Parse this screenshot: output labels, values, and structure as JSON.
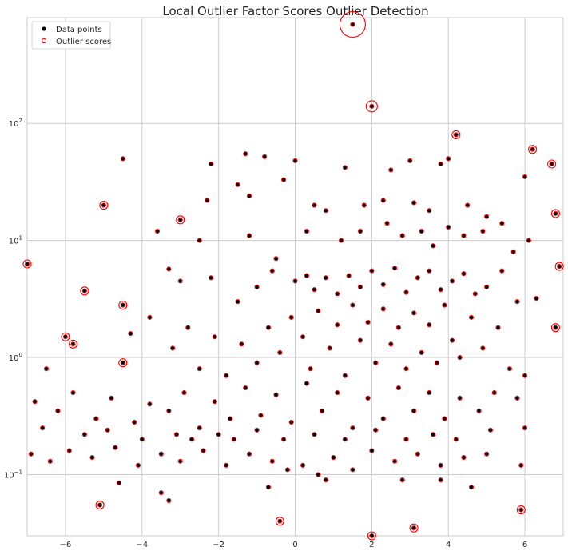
{
  "chart_data": {
    "type": "scatter",
    "title": "Local Outlier Factor Scores Outlier Detection",
    "xlabel": "",
    "ylabel": "",
    "xlim": [
      -7,
      7
    ],
    "ylim": [
      0.03,
      800
    ],
    "yscale": "log",
    "grid": true,
    "legend_position": "top-left",
    "x_ticks": [
      -6,
      -4,
      -2,
      0,
      2,
      4,
      6
    ],
    "y_ticks": [
      0.1,
      1,
      10,
      100
    ],
    "y_tick_labels": [
      "10^-1",
      "10^0",
      "10^1",
      "10^2"
    ],
    "series": [
      {
        "name": "Data points",
        "marker": "filled-circle",
        "color": "#000000",
        "points": [
          [
            1.5,
            700
          ],
          [
            2.0,
            140
          ],
          [
            4.2,
            80
          ],
          [
            6.2,
            60
          ],
          [
            -4.5,
            50
          ],
          [
            -1.3,
            55
          ],
          [
            -0.8,
            52
          ],
          [
            6.7,
            45
          ],
          [
            3.0,
            48
          ],
          [
            3.8,
            45
          ],
          [
            6.0,
            35
          ],
          [
            -2.2,
            45
          ],
          [
            0.0,
            48
          ],
          [
            1.3,
            42
          ],
          [
            2.5,
            40
          ],
          [
            4.0,
            50
          ],
          [
            -5.0,
            20
          ],
          [
            -3.0,
            15
          ],
          [
            -2.3,
            22
          ],
          [
            -1.5,
            30
          ],
          [
            -1.2,
            24
          ],
          [
            -0.3,
            33
          ],
          [
            0.5,
            20
          ],
          [
            0.8,
            18
          ],
          [
            1.8,
            20
          ],
          [
            2.3,
            22
          ],
          [
            3.1,
            21
          ],
          [
            3.5,
            18
          ],
          [
            4.5,
            20
          ],
          [
            5.0,
            16
          ],
          [
            6.8,
            17
          ],
          [
            -6.5,
            0.8
          ],
          [
            -3.6,
            12
          ],
          [
            -2.5,
            10
          ],
          [
            -1.2,
            11
          ],
          [
            -0.5,
            7
          ],
          [
            0.3,
            12
          ],
          [
            1.2,
            10
          ],
          [
            1.7,
            12
          ],
          [
            2.4,
            14
          ],
          [
            2.8,
            11
          ],
          [
            3.3,
            12
          ],
          [
            3.6,
            9
          ],
          [
            4.0,
            13
          ],
          [
            4.4,
            11
          ],
          [
            4.9,
            12
          ],
          [
            5.4,
            14
          ],
          [
            5.7,
            8
          ],
          [
            6.1,
            10
          ],
          [
            -7.0,
            6.3
          ],
          [
            -5.5,
            3.7
          ],
          [
            -4.5,
            2.8
          ],
          [
            -3.3,
            5.7
          ],
          [
            -3.0,
            4.5
          ],
          [
            -2.2,
            4.8
          ],
          [
            -1.5,
            3.0
          ],
          [
            -1.0,
            4.0
          ],
          [
            -0.6,
            5.5
          ],
          [
            0.0,
            4.5
          ],
          [
            0.3,
            5.0
          ],
          [
            0.5,
            3.8
          ],
          [
            0.8,
            4.8
          ],
          [
            1.1,
            3.5
          ],
          [
            1.4,
            5.0
          ],
          [
            1.7,
            4.0
          ],
          [
            2.0,
            5.5
          ],
          [
            2.3,
            4.2
          ],
          [
            2.6,
            5.8
          ],
          [
            2.9,
            3.6
          ],
          [
            3.2,
            4.8
          ],
          [
            3.5,
            5.5
          ],
          [
            3.8,
            3.8
          ],
          [
            4.1,
            4.5
          ],
          [
            4.4,
            5.2
          ],
          [
            4.7,
            3.5
          ],
          [
            5.0,
            4.0
          ],
          [
            5.4,
            5.5
          ],
          [
            5.8,
            3.0
          ],
          [
            6.3,
            3.2
          ],
          [
            6.9,
            6.0
          ],
          [
            -6.0,
            1.5
          ],
          [
            -5.8,
            1.3
          ],
          [
            -4.5,
            0.9
          ],
          [
            -4.3,
            1.6
          ],
          [
            -3.8,
            2.2
          ],
          [
            -3.2,
            1.2
          ],
          [
            -2.8,
            1.8
          ],
          [
            -2.5,
            0.8
          ],
          [
            -2.1,
            1.5
          ],
          [
            -1.8,
            0.7
          ],
          [
            -1.4,
            1.3
          ],
          [
            -1.0,
            0.9
          ],
          [
            -0.7,
            1.8
          ],
          [
            -0.4,
            1.1
          ],
          [
            -0.1,
            2.2
          ],
          [
            0.2,
            1.5
          ],
          [
            0.4,
            0.8
          ],
          [
            0.6,
            2.5
          ],
          [
            0.9,
            1.2
          ],
          [
            1.1,
            1.9
          ],
          [
            1.3,
            0.7
          ],
          [
            1.5,
            2.8
          ],
          [
            1.7,
            1.4
          ],
          [
            1.9,
            2.0
          ],
          [
            2.1,
            0.9
          ],
          [
            2.3,
            2.6
          ],
          [
            2.5,
            1.3
          ],
          [
            2.7,
            1.8
          ],
          [
            2.9,
            0.8
          ],
          [
            3.1,
            2.4
          ],
          [
            3.3,
            1.1
          ],
          [
            3.5,
            1.9
          ],
          [
            3.7,
            0.9
          ],
          [
            3.9,
            2.8
          ],
          [
            4.1,
            1.4
          ],
          [
            4.3,
            1.0
          ],
          [
            4.6,
            2.2
          ],
          [
            4.9,
            1.2
          ],
          [
            5.3,
            1.8
          ],
          [
            5.6,
            0.8
          ],
          [
            6.0,
            0.7
          ],
          [
            6.8,
            1.8
          ],
          [
            -6.8,
            0.42
          ],
          [
            -6.2,
            0.35
          ],
          [
            -5.8,
            0.5
          ],
          [
            -5.2,
            0.3
          ],
          [
            -4.8,
            0.45
          ],
          [
            -4.2,
            0.28
          ],
          [
            -3.8,
            0.4
          ],
          [
            -3.3,
            0.35
          ],
          [
            -2.9,
            0.5
          ],
          [
            -2.5,
            0.25
          ],
          [
            -2.1,
            0.42
          ],
          [
            -1.7,
            0.3
          ],
          [
            -1.3,
            0.55
          ],
          [
            -0.9,
            0.32
          ],
          [
            -0.5,
            0.48
          ],
          [
            -0.1,
            0.28
          ],
          [
            0.3,
            0.6
          ],
          [
            0.7,
            0.35
          ],
          [
            1.1,
            0.5
          ],
          [
            1.5,
            0.25
          ],
          [
            1.9,
            0.45
          ],
          [
            2.3,
            0.3
          ],
          [
            2.7,
            0.55
          ],
          [
            3.1,
            0.35
          ],
          [
            3.5,
            0.5
          ],
          [
            3.9,
            0.3
          ],
          [
            4.3,
            0.45
          ],
          [
            4.8,
            0.35
          ],
          [
            5.2,
            0.5
          ],
          [
            5.8,
            0.45
          ],
          [
            -6.9,
            0.15
          ],
          [
            -6.4,
            0.13
          ],
          [
            -5.9,
            0.16
          ],
          [
            -5.3,
            0.14
          ],
          [
            -4.7,
            0.17
          ],
          [
            -4.1,
            0.12
          ],
          [
            -3.5,
            0.15
          ],
          [
            -3.0,
            0.13
          ],
          [
            -2.4,
            0.16
          ],
          [
            -1.8,
            0.12
          ],
          [
            -1.2,
            0.15
          ],
          [
            -0.6,
            0.13
          ],
          [
            -0.2,
            0.11
          ],
          [
            0.2,
            0.12
          ],
          [
            0.6,
            0.1
          ],
          [
            1.0,
            0.14
          ],
          [
            1.5,
            0.11
          ],
          [
            2.0,
            0.16
          ],
          [
            2.6,
            0.13
          ],
          [
            3.2,
            0.15
          ],
          [
            3.8,
            0.12
          ],
          [
            4.4,
            0.14
          ],
          [
            5.0,
            0.15
          ],
          [
            5.9,
            0.12
          ],
          [
            -5.1,
            0.055
          ],
          [
            -4.6,
            0.085
          ],
          [
            -3.5,
            0.07
          ],
          [
            -3.3,
            0.06
          ],
          [
            -0.7,
            0.078
          ],
          [
            -0.4,
            0.04
          ],
          [
            0.8,
            0.09
          ],
          [
            2.0,
            0.03
          ],
          [
            2.8,
            0.09
          ],
          [
            3.1,
            0.035
          ],
          [
            3.8,
            0.09
          ],
          [
            4.6,
            0.078
          ],
          [
            5.9,
            0.05
          ],
          [
            -6.6,
            0.25
          ],
          [
            -5.5,
            0.22
          ],
          [
            -4.9,
            0.24
          ],
          [
            -4.0,
            0.2
          ],
          [
            -3.1,
            0.22
          ],
          [
            -2.7,
            0.2
          ],
          [
            -2.0,
            0.22
          ],
          [
            -1.6,
            0.2
          ],
          [
            -1.0,
            0.24
          ],
          [
            -0.3,
            0.2
          ],
          [
            0.5,
            0.22
          ],
          [
            1.3,
            0.2
          ],
          [
            2.1,
            0.24
          ],
          [
            2.9,
            0.2
          ],
          [
            3.6,
            0.22
          ],
          [
            4.2,
            0.2
          ],
          [
            5.1,
            0.24
          ],
          [
            6.0,
            0.25
          ]
        ]
      },
      {
        "name": "Outlier scores",
        "marker": "hollow-circle",
        "color": "#ff0000",
        "points": [
          [
            1.5,
            700
          ],
          [
            2.0,
            140
          ],
          [
            4.2,
            80
          ],
          [
            6.2,
            60
          ],
          [
            -5.0,
            20
          ],
          [
            -7.0,
            6.3
          ],
          [
            -3.0,
            15
          ],
          [
            6.7,
            45
          ],
          [
            -5.5,
            3.7
          ],
          [
            -4.5,
            2.8
          ],
          [
            -6.0,
            1.5
          ],
          [
            -5.8,
            1.3
          ],
          [
            -4.5,
            0.9
          ],
          [
            6.8,
            17
          ],
          [
            6.9,
            6.0
          ],
          [
            6.8,
            1.8
          ],
          [
            -5.1,
            0.055
          ],
          [
            2.0,
            0.03
          ],
          [
            3.1,
            0.035
          ],
          [
            5.9,
            0.05
          ],
          [
            -0.4,
            0.04
          ]
        ],
        "sizes": [
          16,
          7,
          5,
          5,
          5,
          5,
          5,
          5,
          5,
          5,
          5,
          5,
          5,
          5,
          5,
          5,
          5,
          5,
          5,
          5,
          5
        ]
      }
    ]
  }
}
